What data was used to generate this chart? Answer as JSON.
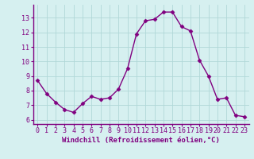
{
  "x": [
    0,
    1,
    2,
    3,
    4,
    5,
    6,
    7,
    8,
    9,
    10,
    11,
    12,
    13,
    14,
    15,
    16,
    17,
    18,
    19,
    20,
    21,
    22,
    23
  ],
  "y": [
    8.7,
    7.8,
    7.2,
    6.7,
    6.5,
    7.1,
    7.6,
    7.4,
    7.5,
    8.1,
    9.5,
    11.9,
    12.8,
    12.9,
    13.4,
    13.4,
    12.4,
    12.1,
    10.1,
    9.0,
    7.4,
    7.5,
    6.3,
    6.2
  ],
  "line_color": "#800080",
  "marker": "D",
  "marker_size": 2.5,
  "line_width": 1.0,
  "bg_color": "#d6f0f0",
  "grid_color": "#b0d8d8",
  "xlabel": "Windchill (Refroidissement éolien,°C)",
  "xlabel_color": "#800080",
  "xlabel_fontsize": 6.5,
  "tick_color": "#800080",
  "tick_fontsize": 6.0,
  "yticks": [
    6,
    7,
    8,
    9,
    10,
    11,
    12,
    13
  ],
  "ylim": [
    5.7,
    13.9
  ],
  "xlim": [
    -0.5,
    23.5
  ],
  "spine_color": "#800080"
}
